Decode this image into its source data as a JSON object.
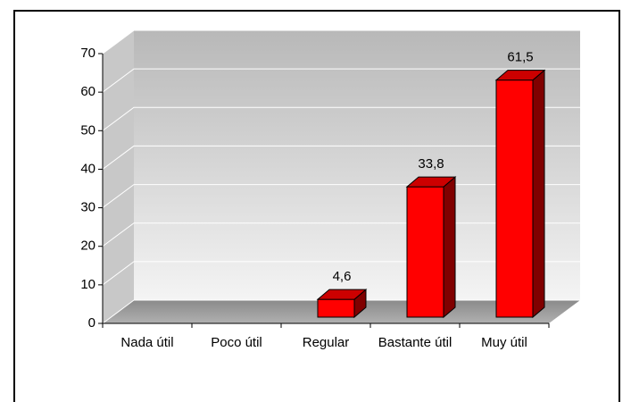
{
  "chart_data": {
    "type": "bar",
    "categories": [
      "Nada útil",
      "Poco útil",
      "Regular",
      "Bastante útil",
      "Muy útil"
    ],
    "values": [
      null,
      null,
      4.6,
      33.8,
      61.5
    ],
    "value_labels": [
      null,
      null,
      "4,6",
      "33,8",
      "61,5"
    ],
    "color": "#ff0000",
    "ylim": [
      0,
      70
    ],
    "yticks": [
      0,
      10,
      20,
      30,
      40,
      50,
      60,
      70
    ],
    "grid": true
  }
}
